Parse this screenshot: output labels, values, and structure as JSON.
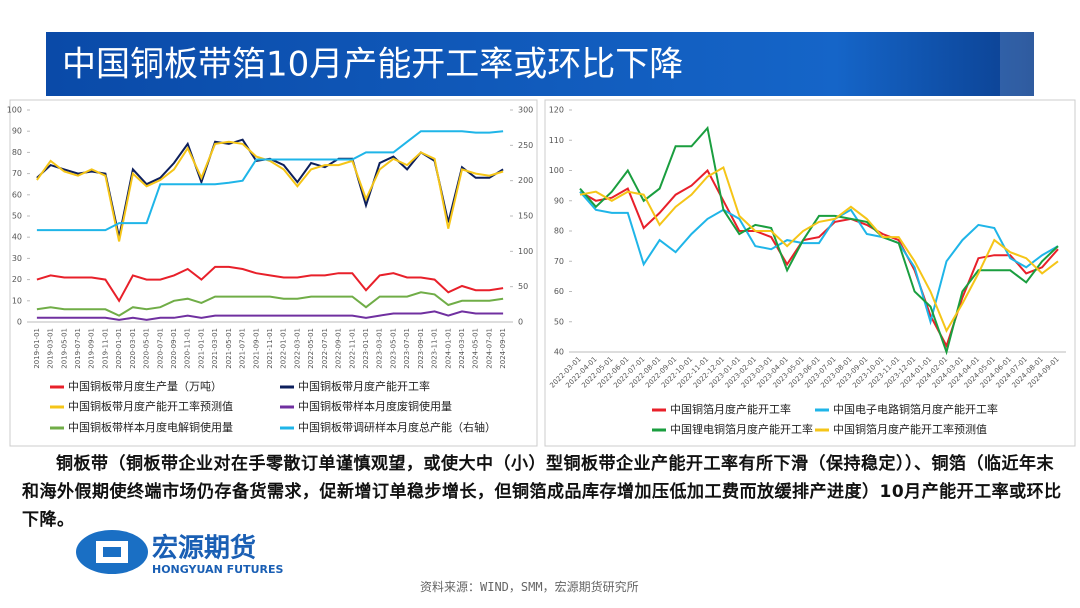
{
  "header": {
    "title": "中国铜板带箔10月产能开工率或环比下降"
  },
  "body": {
    "text": "铜板带（铜板带企业对在手零散订单谨慎观望，或使大中（小）型铜板带企业产能开工率有所下滑（保持稳定））、铜箔（临近年末和海外假期使终端市场仍存备货需求，促新增订单稳步增长，但铜箔成品库存增加压低加工费而放缓排产进度）10月产能开工率或环比下降。"
  },
  "logo": {
    "name": "宏源期货",
    "english": "HONGYUAN FUTURES"
  },
  "source": "资料来源：WIND，SMM，宏源期货研究所",
  "chart_data": [
    {
      "type": "line",
      "categories": [
        "2019-01-01",
        "2019-03-01",
        "2019-05-01",
        "2019-07-01",
        "2019-09-01",
        "2019-11-01",
        "2020-01-01",
        "2020-03-01",
        "2020-05-01",
        "2020-07-01",
        "2020-09-01",
        "2020-11-01",
        "2021-01-01",
        "2021-03-01",
        "2021-05-01",
        "2021-07-01",
        "2021-09-01",
        "2021-11-01",
        "2022-01-01",
        "2022-03-01",
        "2022-05-01",
        "2022-07-01",
        "2022-09-01",
        "2022-11-01",
        "2023-01-01",
        "2023-03-01",
        "2023-05-01",
        "2023-07-01",
        "2023-09-01",
        "2023-11-01",
        "2024-01-01",
        "2024-03-01",
        "2024-05-01",
        "2024-07-01",
        "2024-09-01"
      ],
      "ylim": [
        0,
        100
      ],
      "yticks": [
        0,
        10,
        20,
        30,
        40,
        50,
        60,
        70,
        80,
        90,
        100
      ],
      "y2lim": [
        0,
        300
      ],
      "y2ticks": [
        0,
        50,
        100,
        150,
        200,
        250,
        300
      ],
      "series": [
        {
          "name": "中国铜板带月度生产量（万吨）",
          "color": "#e8202a",
          "values": [
            20,
            22,
            21,
            21,
            21,
            20,
            10,
            22,
            20,
            20,
            22,
            25,
            20,
            26,
            26,
            25,
            23,
            22,
            21,
            21,
            22,
            22,
            23,
            23,
            15,
            22,
            23,
            21,
            21,
            20,
            14,
            17,
            15,
            15,
            16
          ]
        },
        {
          "name": "中国铜板带月度产能开工率",
          "color": "#0d1f5c",
          "values": [
            68,
            74,
            72,
            70,
            71,
            70,
            40,
            72,
            65,
            68,
            75,
            84,
            66,
            85,
            84,
            86,
            76,
            77,
            74,
            66,
            75,
            73,
            77,
            77,
            55,
            75,
            78,
            72,
            80,
            76,
            47,
            73,
            68,
            68,
            72
          ]
        },
        {
          "name": "中国铜板带月度产能开工率预测值",
          "color": "#f5c518",
          "values": [
            67,
            76,
            71,
            69,
            72,
            69,
            38,
            70,
            64,
            67,
            72,
            82,
            68,
            84,
            85,
            84,
            78,
            76,
            72,
            64,
            72,
            74,
            74,
            76,
            58,
            72,
            77,
            74,
            80,
            77,
            44,
            72,
            70,
            69,
            71
          ]
        },
        {
          "name": "中国铜板带样本月度废铜使用量",
          "color": "#7030a0",
          "values": [
            2,
            2,
            2,
            2,
            2,
            2,
            1,
            2,
            1,
            2,
            2,
            3,
            2,
            3,
            3,
            3,
            3,
            3,
            3,
            3,
            3,
            3,
            3,
            3,
            2,
            3,
            4,
            4,
            4,
            5,
            3,
            5,
            4,
            4,
            4
          ]
        },
        {
          "name": "中国铜板带样本月度电解铜使用量",
          "color": "#70ad47",
          "values": [
            6,
            7,
            6,
            6,
            6,
            6,
            3,
            7,
            6,
            7,
            10,
            11,
            9,
            12,
            12,
            12,
            12,
            12,
            11,
            11,
            12,
            12,
            12,
            12,
            7,
            12,
            12,
            12,
            14,
            13,
            8,
            10,
            10,
            10,
            11
          ]
        },
        {
          "name": "中国铜板带调研样本月度总产能（右轴）",
          "color": "#1fb5e8",
          "axis": "y2",
          "values": [
            130,
            130,
            130,
            130,
            130,
            130,
            140,
            140,
            140,
            195,
            195,
            195,
            195,
            195,
            197,
            200,
            230,
            230,
            230,
            230,
            230,
            230,
            230,
            230,
            240,
            240,
            240,
            255,
            270,
            270,
            270,
            270,
            268,
            268,
            270
          ]
        }
      ]
    },
    {
      "type": "line",
      "categories": [
        "2022-03-01",
        "2022-04-01",
        "2022-05-01",
        "2022-06-01",
        "2022-07-01",
        "2022-08-01",
        "2022-09-01",
        "2022-10-01",
        "2022-11-01",
        "2022-12-01",
        "2023-01-01",
        "2023-02-01",
        "2023-03-01",
        "2023-04-01",
        "2023-05-01",
        "2023-06-01",
        "2023-07-01",
        "2023-08-01",
        "2023-09-01",
        "2023-10-01",
        "2023-11-01",
        "2023-12-01",
        "2024-01-01",
        "2024-02-01",
        "2024-03-01",
        "2024-04-01",
        "2024-05-01",
        "2024-06-01",
        "2024-07-01",
        "2024-08-01",
        "2024-09-01"
      ],
      "ylim": [
        40,
        120
      ],
      "yticks": [
        40,
        50,
        60,
        70,
        80,
        90,
        100,
        110,
        120
      ],
      "series": [
        {
          "name": "中国铜箔月度产能开工率",
          "color": "#e8202a",
          "values": [
            93,
            90,
            91,
            94,
            81,
            86,
            92,
            95,
            100,
            90,
            80,
            80,
            78,
            69,
            77,
            78,
            83,
            84,
            82,
            79,
            77,
            67,
            52,
            42,
            58,
            71,
            72,
            72,
            66,
            68,
            74
          ]
        },
        {
          "name": "中国电子电路铜箔月度产能开工率",
          "color": "#1fb5e8",
          "values": [
            93,
            87,
            86,
            86,
            69,
            77,
            73,
            79,
            84,
            87,
            84,
            75,
            74,
            77,
            76,
            76,
            84,
            87,
            79,
            78,
            76,
            68,
            50,
            70,
            77,
            82,
            81,
            71,
            68,
            72,
            75
          ]
        },
        {
          "name": "中国锂电铜箔月度产能开工率",
          "color": "#1a9e3f",
          "values": [
            94,
            88,
            93,
            100,
            90,
            94,
            108,
            108,
            114,
            87,
            79,
            82,
            81,
            67,
            77,
            85,
            85,
            84,
            83,
            78,
            76,
            60,
            55,
            40,
            60,
            67,
            67,
            67,
            63,
            70,
            75
          ]
        },
        {
          "name": "中国铜箔月度产能开工率预测值",
          "color": "#f5c518",
          "values": [
            92,
            93,
            90,
            93,
            92,
            82,
            88,
            92,
            98,
            101,
            85,
            80,
            80,
            75,
            80,
            83,
            84,
            88,
            84,
            78,
            78,
            70,
            60,
            47,
            56,
            66,
            77,
            73,
            71,
            66,
            70
          ]
        }
      ]
    }
  ]
}
